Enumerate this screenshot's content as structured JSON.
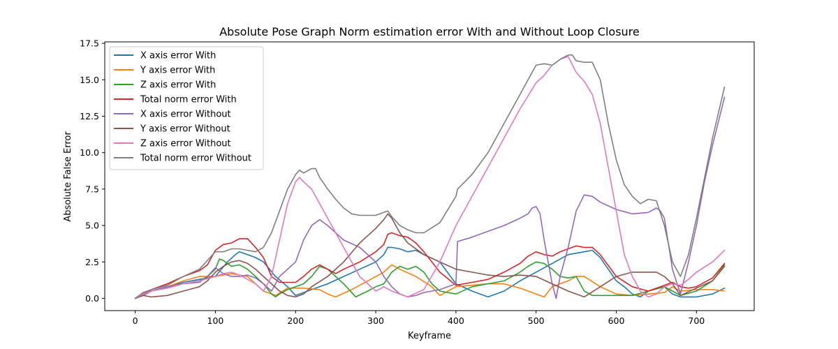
{
  "chart_data": {
    "type": "line",
    "title": "Absolute Pose Graph Norm estimation error With and Without Loop Closure",
    "xlabel": "Keyframe",
    "ylabel": "Absolute False Error",
    "xlim": [
      -38,
      772
    ],
    "ylim": [
      -0.84,
      17.6
    ],
    "xticks": [
      0,
      100,
      200,
      300,
      400,
      500,
      600,
      700
    ],
    "xtick_labels": [
      "0",
      "100",
      "200",
      "300",
      "400",
      "500",
      "600",
      "700"
    ],
    "yticks": [
      0.0,
      2.5,
      5.0,
      7.5,
      10.0,
      12.5,
      15.0,
      17.5
    ],
    "ytick_labels": [
      "0.0",
      "2.5",
      "5.0",
      "7.5",
      "10.0",
      "12.5",
      "15.0",
      "17.5"
    ],
    "grid": false,
    "legend_position": "upper-left",
    "series": [
      {
        "name": "X axis error With",
        "color": "#1f77b4",
        "x": [
          0,
          10,
          20,
          40,
          60,
          80,
          100,
          115,
          125,
          130,
          140,
          150,
          160,
          175,
          190,
          200,
          210,
          220,
          230,
          240,
          260,
          280,
          300,
          310,
          315,
          320,
          330,
          340,
          350,
          360,
          380,
          400,
          420,
          440,
          460,
          480,
          500,
          520,
          540,
          560,
          570,
          580,
          600,
          610,
          620,
          630,
          640,
          660,
          670,
          680,
          700,
          720,
          735
        ],
        "y": [
          0.0,
          0.4,
          0.5,
          0.8,
          1.1,
          1.3,
          1.5,
          2.5,
          3.0,
          3.2,
          3.0,
          2.8,
          2.5,
          1.5,
          0.8,
          0.2,
          0.4,
          0.6,
          0.8,
          1.0,
          1.5,
          2.0,
          2.5,
          3.0,
          3.5,
          3.5,
          3.4,
          3.2,
          3.3,
          3.0,
          2.5,
          1.0,
          0.5,
          0.1,
          0.5,
          1.2,
          1.8,
          2.4,
          3.0,
          3.2,
          3.3,
          2.8,
          1.2,
          0.8,
          0.3,
          0.1,
          0.5,
          0.8,
          0.3,
          0.1,
          0.1,
          0.3,
          0.7
        ]
      },
      {
        "name": "Y axis error With",
        "color": "#ff7f0e",
        "x": [
          0,
          10,
          20,
          40,
          60,
          80,
          100,
          110,
          120,
          130,
          140,
          150,
          160,
          175,
          190,
          210,
          230,
          240,
          250,
          270,
          290,
          310,
          320,
          330,
          350,
          370,
          380,
          400,
          420,
          440,
          460,
          480,
          500,
          510,
          520,
          540,
          550,
          560,
          580,
          600,
          620,
          640,
          660,
          670,
          680,
          700,
          720,
          735
        ],
        "y": [
          0.0,
          0.2,
          0.5,
          0.8,
          1.2,
          1.5,
          1.5,
          1.6,
          1.7,
          1.6,
          1.5,
          1.0,
          0.5,
          0.2,
          0.7,
          0.7,
          0.6,
          0.3,
          0.1,
          0.6,
          1.2,
          1.8,
          2.3,
          2.0,
          1.5,
          0.8,
          0.2,
          0.8,
          0.9,
          1.0,
          1.0,
          0.7,
          0.3,
          0.1,
          0.8,
          1.2,
          1.5,
          1.5,
          0.8,
          0.3,
          0.2,
          0.3,
          0.4,
          0.8,
          0.5,
          0.6,
          0.6,
          0.5
        ]
      },
      {
        "name": "Z axis error With",
        "color": "#2ca02c",
        "x": [
          0,
          10,
          20,
          40,
          60,
          80,
          90,
          100,
          105,
          110,
          120,
          130,
          140,
          150,
          160,
          170,
          175,
          180,
          190,
          200,
          210,
          220,
          230,
          240,
          260,
          275,
          290,
          300,
          310,
          320,
          330,
          340,
          350,
          360,
          370,
          380,
          400,
          420,
          440,
          460,
          480,
          490,
          500,
          510,
          520,
          530,
          540,
          550,
          560,
          570,
          580,
          600,
          620,
          640,
          660,
          670,
          680,
          700,
          720,
          735
        ],
        "y": [
          0.0,
          0.3,
          0.5,
          0.8,
          1.0,
          1.2,
          1.5,
          2.0,
          2.7,
          2.6,
          2.2,
          2.3,
          2.0,
          1.5,
          1.0,
          0.3,
          0.1,
          0.3,
          0.6,
          0.8,
          1.0,
          1.5,
          2.2,
          2.0,
          1.0,
          0.1,
          0.5,
          0.8,
          1.0,
          1.8,
          2.2,
          2.0,
          2.2,
          1.8,
          1.0,
          0.5,
          0.3,
          0.8,
          1.0,
          1.2,
          1.8,
          2.2,
          2.5,
          2.4,
          2.0,
          1.5,
          1.4,
          1.5,
          0.5,
          0.2,
          0.2,
          0.2,
          0.2,
          0.5,
          0.8,
          0.5,
          0.2,
          0.5,
          1.2,
          2.3
        ]
      },
      {
        "name": "Total norm error With",
        "color": "#d62728",
        "x": [
          0,
          10,
          20,
          40,
          60,
          80,
          90,
          100,
          110,
          120,
          130,
          140,
          150,
          160,
          170,
          180,
          190,
          200,
          210,
          220,
          230,
          240,
          250,
          260,
          280,
          300,
          310,
          315,
          320,
          330,
          340,
          350,
          360,
          370,
          380,
          400,
          420,
          440,
          460,
          480,
          490,
          500,
          510,
          520,
          530,
          540,
          550,
          560,
          570,
          580,
          600,
          620,
          640,
          660,
          670,
          680,
          690,
          700,
          720,
          735
        ],
        "y": [
          0.0,
          0.3,
          0.6,
          1.0,
          1.5,
          1.9,
          2.3,
          3.3,
          3.7,
          3.8,
          4.1,
          4.1,
          3.5,
          2.8,
          1.5,
          1.1,
          1.1,
          1.1,
          1.5,
          2.0,
          2.3,
          2.0,
          1.7,
          2.0,
          2.5,
          3.2,
          3.7,
          4.4,
          4.5,
          4.3,
          4.2,
          3.8,
          3.2,
          2.5,
          1.8,
          0.9,
          1.1,
          1.3,
          1.8,
          2.4,
          2.9,
          3.2,
          3.0,
          2.9,
          3.2,
          3.4,
          3.6,
          3.5,
          3.5,
          3.0,
          1.5,
          0.8,
          0.5,
          0.9,
          1.1,
          0.8,
          0.7,
          0.8,
          1.4,
          2.4
        ]
      },
      {
        "name": "X axis error Without",
        "color": "#9467bd",
        "x": [
          0,
          10,
          20,
          40,
          60,
          80,
          90,
          100,
          110,
          120,
          130,
          140,
          150,
          160,
          170,
          180,
          190,
          200,
          210,
          220,
          230,
          240,
          260,
          280,
          300,
          310,
          320,
          330,
          340,
          350,
          360,
          380,
          400,
          402,
          420,
          440,
          460,
          480,
          490,
          495,
          500,
          505,
          510,
          520,
          525,
          530,
          540,
          550,
          560,
          570,
          580,
          600,
          620,
          640,
          650,
          655,
          660,
          670,
          680,
          690,
          700,
          710,
          720,
          735
        ],
        "y": [
          0.0,
          0.2,
          0.5,
          0.8,
          1.0,
          1.1,
          1.5,
          2.1,
          1.7,
          1.5,
          1.5,
          1.6,
          1.4,
          1.0,
          0.5,
          1.5,
          2.0,
          2.5,
          4.0,
          5.0,
          5.4,
          5.0,
          4.0,
          3.5,
          2.5,
          1.5,
          0.8,
          0.3,
          0.1,
          0.2,
          0.4,
          0.6,
          1.0,
          3.9,
          4.2,
          4.6,
          5.0,
          5.5,
          5.8,
          6.2,
          6.3,
          5.8,
          4.0,
          1.0,
          0.0,
          1.5,
          3.5,
          6.0,
          7.1,
          7.0,
          6.6,
          6.1,
          5.8,
          5.9,
          6.2,
          6.0,
          5.5,
          2.0,
          0.3,
          2.5,
          5.0,
          8.0,
          10.5,
          13.8
        ]
      },
      {
        "name": "Y axis error Without",
        "color": "#8c564b",
        "x": [
          0,
          10,
          20,
          40,
          60,
          80,
          90,
          100,
          110,
          120,
          130,
          140,
          150,
          160,
          170,
          180,
          190,
          200,
          210,
          220,
          240,
          260,
          280,
          300,
          310,
          315,
          320,
          330,
          340,
          360,
          380,
          400,
          420,
          440,
          460,
          480,
          500,
          520,
          540,
          560,
          580,
          600,
          620,
          640,
          650,
          660,
          670,
          680,
          700,
          720,
          735
        ],
        "y": [
          0.0,
          0.2,
          0.1,
          0.2,
          0.5,
          0.8,
          1.2,
          1.8,
          2.2,
          2.5,
          2.6,
          2.4,
          2.0,
          1.5,
          1.0,
          0.5,
          0.2,
          0.1,
          0.3,
          0.8,
          1.5,
          2.5,
          3.8,
          4.8,
          5.4,
          5.8,
          5.5,
          4.5,
          3.8,
          3.0,
          2.5,
          2.0,
          1.8,
          1.6,
          1.5,
          1.6,
          1.5,
          1.0,
          0.5,
          0.1,
          0.8,
          1.5,
          1.8,
          1.8,
          1.8,
          1.5,
          1.0,
          0.2,
          0.7,
          1.2,
          2.2
        ]
      },
      {
        "name": "Z axis error Without",
        "color": "#e377c2",
        "x": [
          0,
          10,
          20,
          40,
          60,
          80,
          100,
          110,
          120,
          130,
          140,
          150,
          160,
          170,
          180,
          190,
          200,
          205,
          210,
          220,
          230,
          240,
          250,
          260,
          270,
          280,
          290,
          300,
          310,
          320,
          330,
          340,
          360,
          380,
          400,
          420,
          440,
          460,
          480,
          500,
          510,
          520,
          530,
          540,
          550,
          560,
          570,
          580,
          590,
          600,
          610,
          620,
          630,
          640,
          650,
          660,
          670,
          680,
          690,
          700,
          720,
          735
        ],
        "y": [
          0.0,
          0.3,
          0.5,
          0.7,
          1.0,
          1.2,
          1.5,
          1.7,
          1.8,
          1.6,
          1.3,
          1.0,
          0.5,
          1.5,
          4.0,
          6.5,
          8.0,
          8.3,
          8.0,
          7.5,
          6.5,
          5.5,
          4.5,
          3.5,
          2.5,
          1.5,
          1.0,
          0.5,
          0.8,
          0.5,
          0.3,
          0.1,
          0.6,
          2.5,
          5.0,
          7.0,
          9.0,
          11.0,
          13.0,
          14.8,
          15.3,
          16.0,
          16.4,
          16.6,
          15.5,
          14.9,
          14.0,
          12.0,
          9.0,
          6.0,
          3.0,
          1.5,
          0.5,
          0.1,
          0.3,
          0.8,
          1.0,
          0.9,
          1.3,
          1.8,
          2.5,
          3.3
        ]
      },
      {
        "name": "Total norm error Without",
        "color": "#7f7f7f",
        "x": [
          0,
          10,
          20,
          40,
          60,
          80,
          100,
          110,
          120,
          130,
          140,
          150,
          160,
          170,
          180,
          190,
          200,
          205,
          210,
          220,
          225,
          230,
          240,
          250,
          260,
          270,
          280,
          300,
          310,
          315,
          320,
          330,
          340,
          350,
          360,
          380,
          400,
          402,
          420,
          440,
          460,
          480,
          490,
          500,
          510,
          520,
          530,
          540,
          545,
          550,
          560,
          570,
          580,
          590,
          600,
          610,
          620,
          630,
          640,
          650,
          660,
          670,
          680,
          690,
          700,
          720,
          735
        ],
        "y": [
          0.0,
          0.4,
          0.6,
          0.9,
          1.5,
          2.0,
          3.2,
          3.2,
          3.4,
          3.4,
          3.3,
          3.2,
          3.5,
          4.5,
          6.0,
          7.5,
          8.5,
          8.8,
          8.6,
          8.9,
          8.9,
          8.3,
          7.5,
          6.8,
          6.2,
          5.8,
          5.7,
          5.7,
          5.9,
          6.0,
          5.6,
          5.0,
          4.7,
          4.5,
          4.5,
          5.2,
          7.0,
          7.5,
          8.5,
          10.0,
          12.0,
          14.0,
          15.0,
          16.0,
          16.1,
          16.0,
          16.4,
          16.7,
          16.7,
          16.3,
          16.2,
          16.2,
          15.0,
          12.0,
          9.5,
          7.8,
          7.0,
          6.5,
          6.8,
          6.7,
          5.0,
          2.5,
          1.5,
          3.0,
          5.5,
          11.0,
          14.5
        ]
      }
    ]
  }
}
